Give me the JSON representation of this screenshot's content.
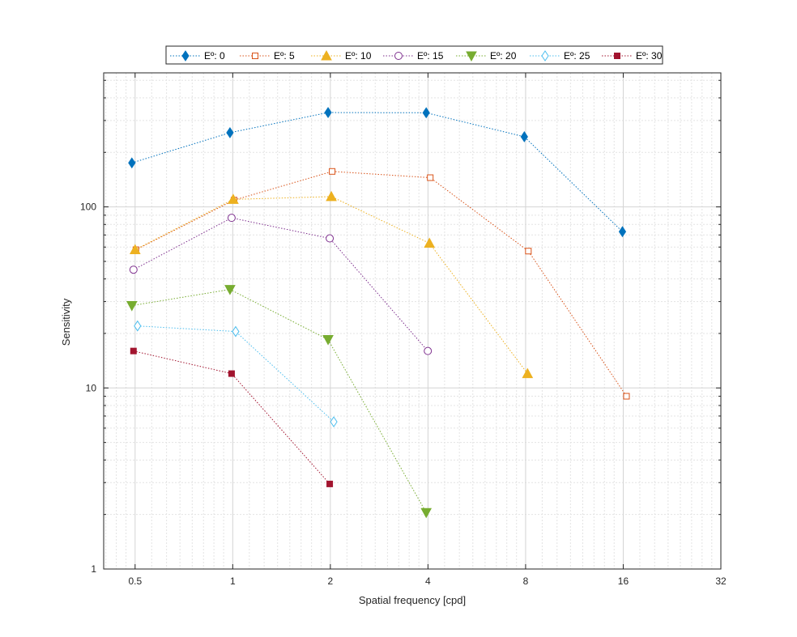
{
  "chart_data": {
    "type": "line",
    "title": "",
    "xlabel": "Spatial frequency [cpd]",
    "ylabel": "Sensitivity",
    "xscale": "log2",
    "yscale": "log10",
    "xlim": [
      0.4,
      32
    ],
    "ylim": [
      1,
      550
    ],
    "xticks": [
      0.5,
      1,
      2,
      4,
      8,
      16,
      32
    ],
    "xtick_labels": [
      "0.5",
      "1",
      "2",
      "4",
      "8",
      "16",
      "32"
    ],
    "yticks": [
      1,
      10,
      100
    ],
    "ytick_labels": [
      "1",
      "10",
      "100"
    ],
    "grid": true,
    "legend_position": "top-center-outside",
    "series": [
      {
        "name": "Eº: 0",
        "marker": "diamond-filled",
        "color": "#0072BD",
        "x": [
          0.5,
          1,
          2,
          4,
          8,
          16
        ],
        "y": [
          175,
          257,
          332,
          331,
          244,
          73
        ]
      },
      {
        "name": "Eº: 5",
        "marker": "square-open",
        "color": "#D95319",
        "x": [
          0.5,
          1,
          2,
          4,
          8,
          16
        ],
        "y": [
          58,
          109,
          157,
          145,
          57,
          9
        ]
      },
      {
        "name": "Eº: 10",
        "marker": "triangle-up-filled",
        "color": "#EDB120",
        "x": [
          0.5,
          1,
          2,
          4,
          8
        ],
        "y": [
          58,
          110,
          114,
          63,
          12
        ]
      },
      {
        "name": "Eº: 15",
        "marker": "circle-open",
        "color": "#7E2F8E",
        "x": [
          0.5,
          1,
          2,
          4
        ],
        "y": [
          45,
          87,
          67,
          16
        ]
      },
      {
        "name": "Eº: 20",
        "marker": "triangle-down-filled",
        "color": "#77AC30",
        "x": [
          0.5,
          1,
          2,
          4
        ],
        "y": [
          28.5,
          35,
          18.5,
          2.05
        ]
      },
      {
        "name": "Eº: 25",
        "marker": "diamond-open",
        "color": "#4DBEEE",
        "x": [
          0.5,
          1,
          2,
          4
        ],
        "y": [
          22,
          20.5,
          6.5,
          null
        ]
      },
      {
        "name": "Eº: 30",
        "marker": "square-filled",
        "color": "#A2142F",
        "x": [
          0.5,
          1,
          2
        ],
        "y": [
          16,
          12,
          2.95
        ]
      }
    ]
  }
}
